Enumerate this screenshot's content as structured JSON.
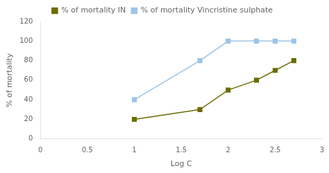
{
  "chart_data": {
    "type": "line",
    "x": [
      1.0,
      1.699,
      2.0,
      2.301,
      2.5,
      2.699
    ],
    "series": [
      {
        "name": "% of mortality IN",
        "color": "#6b6b00",
        "marker": "square",
        "values": [
          20,
          30,
          50,
          60,
          70,
          80
        ]
      },
      {
        "name": "% of mortality Vincristine sulphate",
        "color": "#9dc3e6",
        "marker": "square",
        "values": [
          40,
          80,
          100,
          100,
          100,
          100
        ]
      }
    ],
    "xlabel": "Log C",
    "ylabel": "% of mortality",
    "xlim": [
      0,
      3
    ],
    "ylim": [
      0,
      120
    ],
    "xticks": [
      0,
      0.5,
      1.0,
      1.5,
      2.0,
      2.5,
      3.0
    ],
    "yticks": [
      0,
      20,
      40,
      60,
      80,
      100,
      120
    ],
    "grid": false,
    "legend": "top"
  }
}
